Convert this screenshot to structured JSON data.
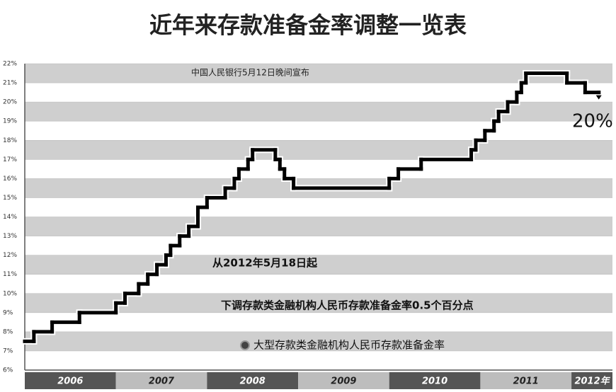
{
  "chart_data": {
    "type": "step-line",
    "title": "近年来存款准备金率调整一览表",
    "annotations": [
      "中国人民银行5月12日晚间宣布",
      "20%",
      "从2012年5月18日起",
      "下调存款类金融机构人民币存款准备金率0.5个百分点"
    ],
    "series": [
      {
        "name": "大型存款类金融机构人民币存款准备金率",
        "color": "#000000",
        "x": [
          2006.0,
          2006.1,
          2006.3,
          2006.6,
          2007.0,
          2007.1,
          2007.25,
          2007.35,
          2007.45,
          2007.55,
          2007.6,
          2007.7,
          2007.8,
          2007.9,
          2008.0,
          2008.2,
          2008.3,
          2008.35,
          2008.45,
          2008.5,
          2008.75,
          2008.8,
          2008.85,
          2008.95,
          2010.0,
          2010.1,
          2010.35,
          2010.9,
          2010.95,
          2011.05,
          2011.15,
          2011.2,
          2011.3,
          2011.4,
          2011.45,
          2011.5,
          2011.95,
          2012.15,
          2012.3
        ],
        "values": [
          7.5,
          8,
          8.5,
          9,
          9.5,
          10,
          10.5,
          11,
          11.5,
          12,
          12.5,
          13,
          13.5,
          14.5,
          15,
          15.5,
          16,
          16.5,
          17,
          17.5,
          17,
          16.5,
          16,
          15.5,
          16,
          16.5,
          17,
          17.5,
          18,
          18.5,
          19,
          19.5,
          20,
          20.5,
          21,
          21.5,
          21,
          20.5,
          20.5
        ]
      }
    ],
    "xlim": [
      2006,
      2012.45
    ],
    "xticks": [
      {
        "value": 2006,
        "label": "2006"
      },
      {
        "value": 2007,
        "label": "2007"
      },
      {
        "value": 2008,
        "label": "2008"
      },
      {
        "value": 2009,
        "label": "2009"
      },
      {
        "value": 2010,
        "label": "2010"
      },
      {
        "value": 2011,
        "label": "2011"
      },
      {
        "value": 2012,
        "label": "2012年"
      }
    ],
    "ylim": [
      6,
      22
    ],
    "yticks": [
      {
        "value": 6,
        "label": "6%"
      },
      {
        "value": 7,
        "label": "7%"
      },
      {
        "value": 8,
        "label": "8%"
      },
      {
        "value": 9,
        "label": "9%"
      },
      {
        "value": 10,
        "label": "10%"
      },
      {
        "value": 11,
        "label": "11%"
      },
      {
        "value": 12,
        "label": "12%"
      },
      {
        "value": 13,
        "label": "13%"
      },
      {
        "value": 14,
        "label": "14%"
      },
      {
        "value": 15,
        "label": "15%"
      },
      {
        "value": 16,
        "label": "16%"
      },
      {
        "value": 17,
        "label": "17%"
      },
      {
        "value": 18,
        "label": "18%"
      },
      {
        "value": 19,
        "label": "19%"
      },
      {
        "value": 20,
        "label": "20%"
      },
      {
        "value": 21,
        "label": "21%"
      },
      {
        "value": 22,
        "label": "22%"
      }
    ],
    "grid": true
  }
}
